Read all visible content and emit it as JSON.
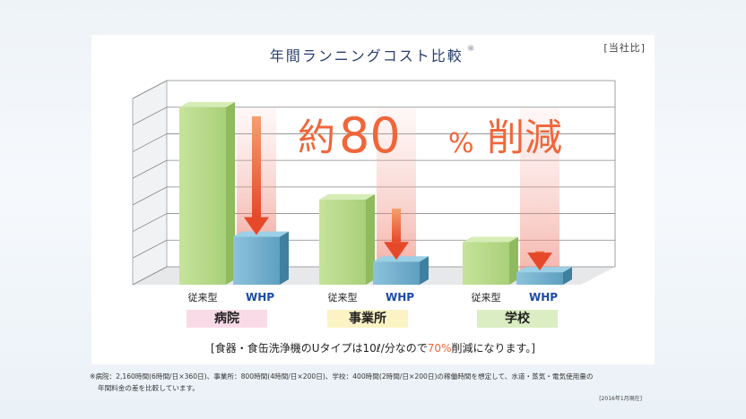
{
  "title": "年間ランニングコスト比較",
  "title_mark": "※",
  "source_label": "[当社比]",
  "headline": {
    "prefix": "約",
    "number": "80",
    "unit": "%",
    "suffix": "削減"
  },
  "chart_data": {
    "type": "bar",
    "title": "年間ランニングコスト比較",
    "categories": [
      "病院",
      "事業所",
      "学校"
    ],
    "series": [
      {
        "name": "従来型",
        "values": [
          100,
          48,
          24
        ]
      },
      {
        "name": "WHP",
        "values": [
          27,
          13,
          7
        ]
      }
    ],
    "ylim": [
      0,
      105
    ],
    "grid": true,
    "colors": {
      "従来型": "#b8d98a",
      "WHP": "#6aa9c8",
      "arrow": "#ec5a33",
      "category_bg": [
        "#f9dbe7",
        "#fbf3c4",
        "#dbeec3"
      ]
    }
  },
  "subtitle": {
    "before": "[食器・食缶洗浄機のUタイプは10ℓ/分なので",
    "highlight": "70%",
    "after": "削減になります。]"
  },
  "footnote": {
    "line1": "※病院：2,160時間(6時間/日×360日)、事業所：800時間(4時間/日×200日)、学校：400時間(2時間/日×200日)の稼働時間を想定して、水道・蒸気・電気使用量の",
    "line2": "年間料金の差を比較しています。"
  },
  "date_note": "[2016年1月現在]"
}
